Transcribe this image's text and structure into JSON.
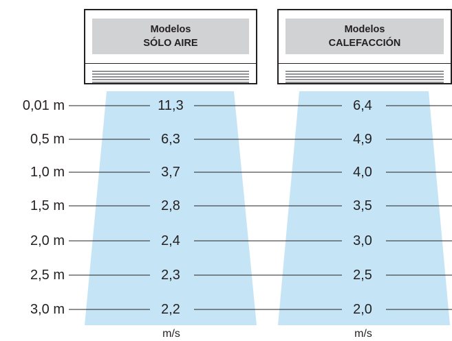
{
  "units": [
    {
      "title_line1": "Modelos",
      "title_line2": "SÓLO AIRE"
    },
    {
      "title_line1": "Modelos",
      "title_line2": "CALEFACCIÓN"
    }
  ],
  "distances": [
    "0,01 m",
    "0,5 m",
    "1,0 m",
    "1,5 m",
    "2,0 m",
    "2,5 m",
    "3,0 m"
  ],
  "speeds_solo_aire": [
    "11,3",
    "6,3",
    "3,7",
    "2,8",
    "2,4",
    "2,3",
    "2,2"
  ],
  "speeds_calefaccion": [
    "6,4",
    "4,9",
    "4,0",
    "3,5",
    "3,0",
    "2,5",
    "2,0"
  ],
  "speed_unit": "m/s",
  "colors": {
    "airflow": "#c5e5f6",
    "panel": "#d1d2d4",
    "line": "#231f20"
  }
}
